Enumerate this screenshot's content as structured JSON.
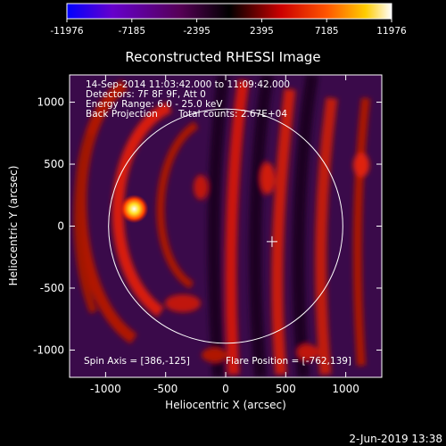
{
  "chart_data": {
    "type": "heatmap",
    "title": "Reconstructed RHESSI Image",
    "xlabel": "Heliocentric X (arcsec)",
    "ylabel": "Heliocentric Y (arcsec)",
    "xlim": [
      -1300,
      1300
    ],
    "ylim": [
      -1220,
      1220
    ],
    "x_ticks": [
      -1000,
      -500,
      0,
      500,
      1000
    ],
    "y_ticks": [
      -1000,
      -500,
      0,
      500,
      1000
    ],
    "colorbar": {
      "ticks": [
        "-11976",
        "-7185",
        "-2395",
        "2395",
        "7185",
        "11976"
      ],
      "min": -11976,
      "max": 11976,
      "colors": [
        "#0000ff",
        "#6600cc",
        "#550055",
        "#000000",
        "#cc0000",
        "#ff5500",
        "#ffcc00",
        "#ffffff"
      ]
    },
    "info_lines": [
      "14-Sep-2014 11:03:42.000 to 11:09:42.000",
      "Detectors: 7F 8F 9F, Att 0",
      "Energy Range: 6.0 - 25.0 keV"
    ],
    "info_method": "Back Projection",
    "info_counts": "Total counts: 2.67E+04",
    "spin_axis": "Spin Axis = [386,-125]",
    "flare_position_text": "Flare Position = [-762,139]",
    "flare_position": [
      -762,
      139
    ],
    "disk_center": [
      0,
      0
    ],
    "disk_radius_arcsec": 960,
    "spin_axis_marker": [
      386,
      -125
    ],
    "colors": {
      "background": "#000000",
      "map_background": "#3a0a4a",
      "limb": "#ffffff"
    }
  },
  "footer": {
    "timestamp": "2-Jun-2019 13:38"
  }
}
